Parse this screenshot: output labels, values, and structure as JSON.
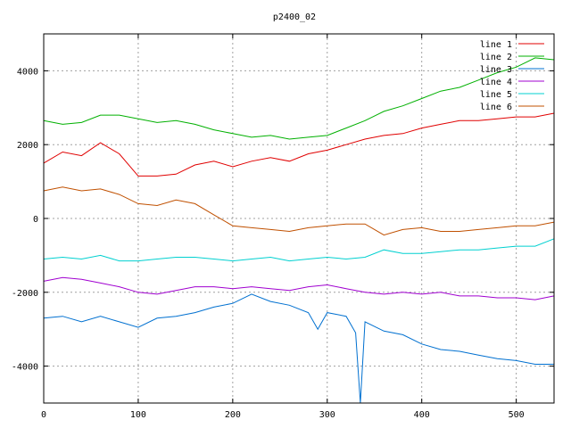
{
  "chart_data": {
    "type": "line",
    "title": "p2400_02",
    "xlabel": "",
    "ylabel": "",
    "xlim": [
      0,
      540
    ],
    "ylim": [
      -5000,
      5000
    ],
    "xticks": [
      0,
      100,
      200,
      300,
      400,
      500
    ],
    "yticks": [
      -4000,
      -2000,
      0,
      2000,
      4000
    ],
    "grid": true,
    "legend_position": "top-right",
    "series": [
      {
        "name": "line 1",
        "color": "#e00000",
        "x": [
          0,
          20,
          40,
          60,
          80,
          100,
          120,
          140,
          160,
          180,
          200,
          220,
          240,
          260,
          280,
          300,
          320,
          340,
          360,
          380,
          400,
          420,
          440,
          460,
          480,
          500,
          520,
          540
        ],
        "y": [
          1500,
          1800,
          1700,
          2050,
          1750,
          1150,
          1150,
          1200,
          1450,
          1550,
          1400,
          1550,
          1650,
          1550,
          1750,
          1850,
          2000,
          2150,
          2250,
          2300,
          2450,
          2550,
          2650,
          2650,
          2700,
          2750,
          2750,
          2850
        ]
      },
      {
        "name": "line 2",
        "color": "#00b000",
        "x": [
          0,
          20,
          40,
          60,
          80,
          100,
          120,
          140,
          160,
          180,
          200,
          220,
          240,
          260,
          280,
          300,
          320,
          340,
          360,
          380,
          400,
          420,
          440,
          460,
          480,
          500,
          520,
          540
        ],
        "y": [
          2650,
          2550,
          2600,
          2800,
          2800,
          2700,
          2600,
          2650,
          2550,
          2400,
          2300,
          2200,
          2250,
          2150,
          2200,
          2250,
          2450,
          2650,
          2900,
          3050,
          3250,
          3450,
          3550,
          3750,
          3950,
          4100,
          4350,
          4300
        ]
      },
      {
        "name": "line 3",
        "color": "#0070d0",
        "x": [
          0,
          20,
          40,
          60,
          80,
          100,
          120,
          140,
          160,
          180,
          200,
          220,
          240,
          260,
          280,
          290,
          300,
          320,
          330,
          335,
          340,
          360,
          380,
          400,
          420,
          440,
          460,
          480,
          500,
          520,
          540
        ],
        "y": [
          -2700,
          -2650,
          -2800,
          -2650,
          -2800,
          -2950,
          -2700,
          -2650,
          -2550,
          -2400,
          -2300,
          -2050,
          -2250,
          -2350,
          -2550,
          -3000,
          -2550,
          -2650,
          -3100,
          -5000,
          -2800,
          -3050,
          -3150,
          -3400,
          -3550,
          -3600,
          -3700,
          -3800,
          -3850,
          -3950,
          -3950
        ]
      },
      {
        "name": "line 4",
        "color": "#a000d0",
        "x": [
          0,
          20,
          40,
          60,
          80,
          100,
          120,
          140,
          160,
          180,
          200,
          220,
          240,
          260,
          280,
          300,
          320,
          340,
          360,
          380,
          400,
          420,
          440,
          460,
          480,
          500,
          520,
          540
        ],
        "y": [
          -1700,
          -1600,
          -1650,
          -1750,
          -1850,
          -2000,
          -2050,
          -1950,
          -1850,
          -1850,
          -1900,
          -1850,
          -1900,
          -1950,
          -1850,
          -1800,
          -1900,
          -2000,
          -2050,
          -2000,
          -2050,
          -2000,
          -2100,
          -2100,
          -2150,
          -2150,
          -2200,
          -2100
        ]
      },
      {
        "name": "line 5",
        "color": "#00d0d0",
        "x": [
          0,
          20,
          40,
          60,
          80,
          100,
          120,
          140,
          160,
          180,
          200,
          220,
          240,
          260,
          280,
          300,
          320,
          340,
          360,
          380,
          400,
          420,
          440,
          460,
          480,
          500,
          520,
          540
        ],
        "y": [
          -1100,
          -1050,
          -1100,
          -1000,
          -1150,
          -1150,
          -1100,
          -1050,
          -1050,
          -1100,
          -1150,
          -1100,
          -1050,
          -1150,
          -1100,
          -1050,
          -1100,
          -1050,
          -850,
          -950,
          -950,
          -900,
          -850,
          -850,
          -800,
          -750,
          -750,
          -550
        ]
      },
      {
        "name": "line 6",
        "color": "#c05000",
        "x": [
          0,
          20,
          40,
          60,
          80,
          100,
          120,
          140,
          160,
          180,
          200,
          220,
          240,
          260,
          280,
          300,
          320,
          340,
          360,
          380,
          400,
          420,
          440,
          460,
          480,
          500,
          520,
          540
        ],
        "y": [
          750,
          850,
          750,
          800,
          650,
          400,
          350,
          500,
          400,
          100,
          -200,
          -250,
          -300,
          -350,
          -250,
          -200,
          -150,
          -150,
          -450,
          -300,
          -250,
          -350,
          -350,
          -300,
          -250,
          -200,
          -200,
          -100
        ]
      }
    ]
  }
}
